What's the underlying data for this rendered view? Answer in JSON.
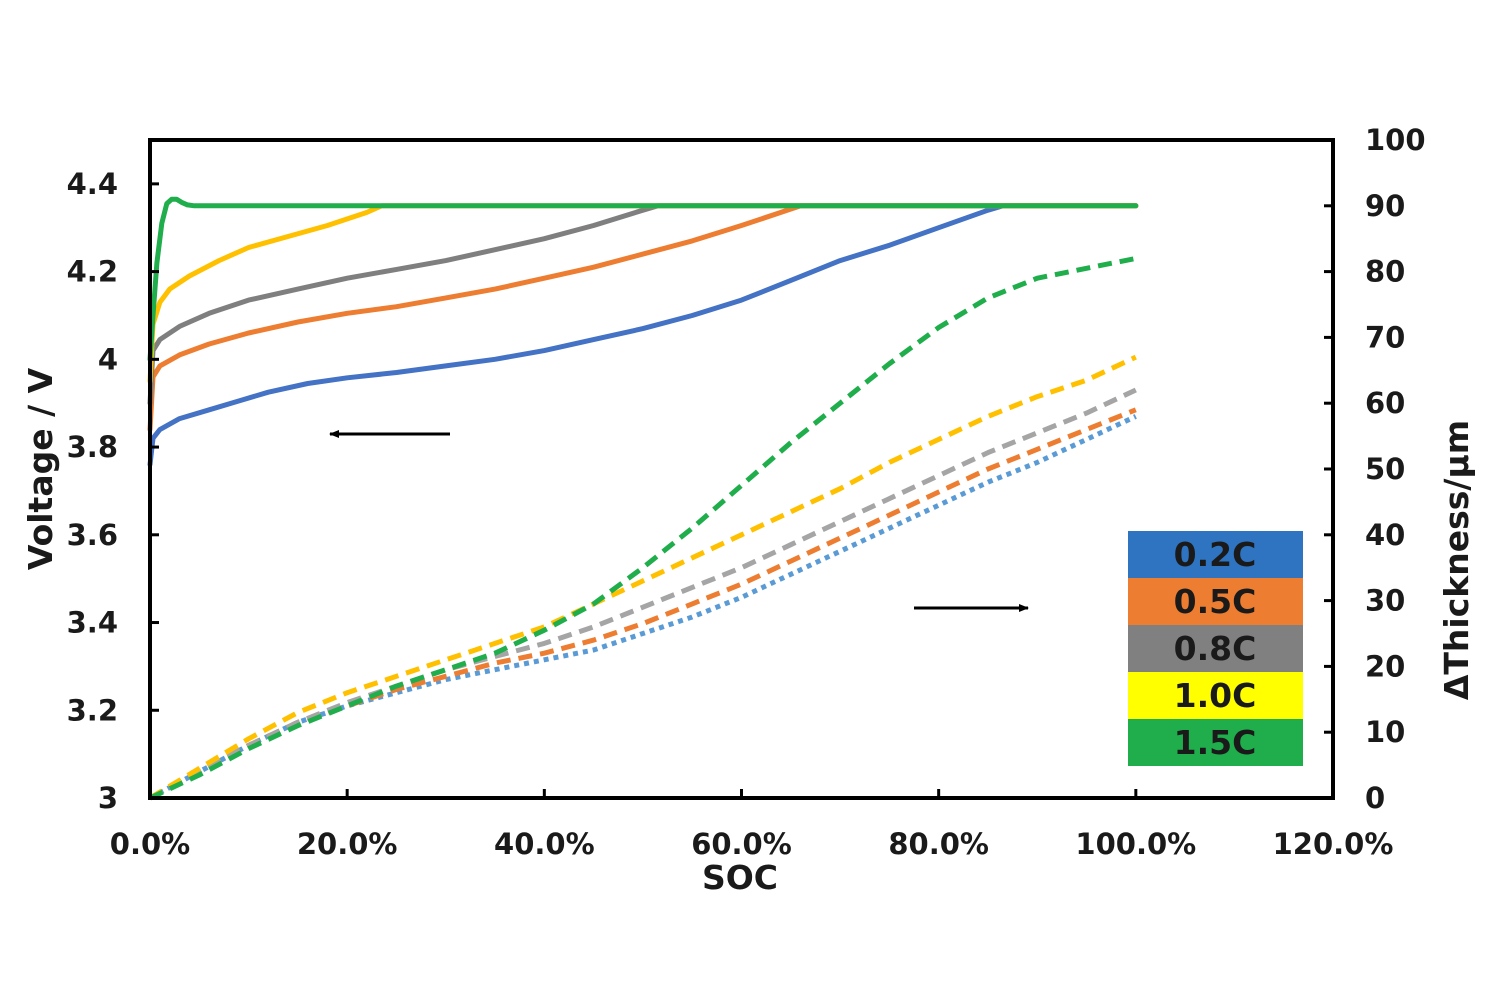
{
  "chart_data": {
    "type": "line",
    "xlabel": "SOC",
    "ylabel": "Voltage / V",
    "y2label": "ΔThickness/μm",
    "xlim": [
      0,
      120
    ],
    "ylim": [
      3,
      4.5
    ],
    "y2lim": [
      0,
      100
    ],
    "x_ticks": [
      "0.0%",
      "20.0%",
      "40.0%",
      "60.0%",
      "80.0%",
      "100.0%",
      "120.0%"
    ],
    "y_ticks": [
      "3",
      "3.2",
      "3.4",
      "3.6",
      "3.8",
      "4",
      "4.2",
      "4.4"
    ],
    "y2_ticks": [
      "0",
      "10",
      "20",
      "30",
      "40",
      "50",
      "60",
      "70",
      "80",
      "90",
      "100"
    ],
    "legend": {
      "position": "bottom-right",
      "entries": [
        {
          "label": "0.2C",
          "color": "#2f74c0"
        },
        {
          "label": "0.5C",
          "color": "#ed7d31"
        },
        {
          "label": "0.8C",
          "color": "#808080"
        },
        {
          "label": "1.0C",
          "color": "#ffff00"
        },
        {
          "label": "1.5C",
          "color": "#1fae4b"
        }
      ]
    },
    "annotations": [
      {
        "type": "arrow",
        "direction": "left",
        "meaning": "voltage curves use left axis"
      },
      {
        "type": "arrow",
        "direction": "right",
        "meaning": "thickness curves use right axis"
      }
    ],
    "voltage_series": [
      {
        "name": "0.2C",
        "axis": "left",
        "color": "#4472c4",
        "x": [
          0,
          0.3,
          1,
          3,
          6,
          9,
          12,
          16,
          20,
          25,
          30,
          35,
          40,
          45,
          50,
          55,
          60,
          65,
          70,
          75,
          80,
          85,
          86.5,
          90,
          95,
          100
        ],
        "y": [
          3.76,
          3.82,
          3.84,
          3.865,
          3.885,
          3.905,
          3.925,
          3.945,
          3.958,
          3.97,
          3.985,
          4.0,
          4.02,
          4.045,
          4.07,
          4.1,
          4.135,
          4.18,
          4.225,
          4.26,
          4.3,
          4.34,
          4.35,
          4.35,
          4.35,
          4.35
        ]
      },
      {
        "name": "0.5C",
        "axis": "left",
        "color": "#ed7d31",
        "x": [
          0,
          0.3,
          1,
          3,
          6,
          10,
          15,
          20,
          25,
          30,
          35,
          40,
          45,
          50,
          55,
          60,
          64,
          66,
          70,
          80,
          90,
          100
        ],
        "y": [
          3.84,
          3.96,
          3.985,
          4.01,
          4.035,
          4.06,
          4.085,
          4.105,
          4.12,
          4.14,
          4.16,
          4.185,
          4.21,
          4.24,
          4.27,
          4.305,
          4.335,
          4.35,
          4.35,
          4.35,
          4.35,
          4.35
        ]
      },
      {
        "name": "0.8C",
        "axis": "left",
        "color": "#7f7f7f",
        "x": [
          0,
          0.3,
          1,
          3,
          6,
          10,
          15,
          20,
          25,
          30,
          35,
          40,
          45,
          50,
          51.5,
          55,
          60,
          70,
          80,
          90,
          100
        ],
        "y": [
          3.9,
          4.02,
          4.045,
          4.075,
          4.105,
          4.135,
          4.16,
          4.185,
          4.205,
          4.225,
          4.25,
          4.275,
          4.305,
          4.34,
          4.35,
          4.35,
          4.35,
          4.35,
          4.35,
          4.35,
          4.35
        ]
      },
      {
        "name": "1.0C",
        "axis": "left",
        "color": "#ffc000",
        "x": [
          0,
          0.3,
          1,
          2,
          4,
          7,
          10,
          14,
          18,
          22,
          23.5,
          26,
          30,
          40,
          50,
          60,
          70,
          80,
          90,
          100
        ],
        "y": [
          3.95,
          4.08,
          4.13,
          4.16,
          4.19,
          4.225,
          4.255,
          4.28,
          4.305,
          4.335,
          4.35,
          4.35,
          4.35,
          4.35,
          4.35,
          4.35,
          4.35,
          4.35,
          4.35,
          4.35
        ]
      },
      {
        "name": "1.5C",
        "axis": "left",
        "color": "#1fae4b",
        "x": [
          0,
          0.3,
          0.7,
          1.2,
          1.7,
          2.2,
          2.7,
          3.2,
          3.8,
          4.5,
          6,
          10,
          20,
          30,
          40,
          50,
          60,
          70,
          80,
          90,
          100
        ],
        "y": [
          4.0,
          4.1,
          4.22,
          4.31,
          4.355,
          4.365,
          4.365,
          4.358,
          4.352,
          4.35,
          4.35,
          4.35,
          4.35,
          4.35,
          4.35,
          4.35,
          4.35,
          4.35,
          4.35,
          4.35,
          4.35
        ]
      }
    ],
    "thickness_series": [
      {
        "name": "0.2C",
        "axis": "right",
        "color": "#5b9bd5",
        "x": [
          0,
          5,
          10,
          15,
          20,
          25,
          30,
          35,
          40,
          45,
          50,
          55,
          60,
          65,
          70,
          75,
          80,
          85,
          90,
          95,
          100
        ],
        "y": [
          0,
          4,
          8,
          11.5,
          14,
          16,
          18,
          19.5,
          21,
          22.5,
          25,
          27.5,
          30.5,
          34,
          37.5,
          41,
          44.5,
          48,
          51,
          54.5,
          58
        ]
      },
      {
        "name": "0.5C",
        "axis": "right",
        "color": "#ed7d31",
        "x": [
          0,
          5,
          10,
          15,
          20,
          25,
          30,
          35,
          40,
          45,
          50,
          55,
          60,
          65,
          70,
          75,
          80,
          85,
          90,
          95,
          100
        ],
        "y": [
          0,
          4,
          8,
          11.5,
          14,
          16.5,
          18.5,
          20.5,
          22,
          24,
          26.5,
          29.5,
          32.5,
          36,
          39.5,
          43,
          46.5,
          50,
          53,
          56,
          59
        ]
      },
      {
        "name": "0.8C",
        "axis": "right",
        "color": "#a5a5a5",
        "x": [
          0,
          5,
          10,
          15,
          20,
          25,
          30,
          35,
          40,
          45,
          50,
          55,
          60,
          65,
          70,
          75,
          80,
          85,
          90,
          95,
          100
        ],
        "y": [
          0,
          4,
          8,
          11.5,
          14.5,
          17,
          19.5,
          21.5,
          23.5,
          26,
          29,
          32,
          35,
          38.5,
          42,
          45.5,
          49,
          52.5,
          55.5,
          58.5,
          62
        ]
      },
      {
        "name": "1.0C",
        "axis": "right",
        "color": "#ffc000",
        "x": [
          0,
          5,
          10,
          15,
          20,
          25,
          30,
          35,
          40,
          45,
          50,
          55,
          60,
          65,
          70,
          75,
          80,
          85,
          90,
          95,
          100
        ],
        "y": [
          0,
          4.5,
          9,
          13,
          16,
          18.5,
          21,
          23.5,
          26,
          29.5,
          33,
          36.5,
          40,
          43.5,
          47,
          51,
          54.5,
          58,
          61,
          63.5,
          67
        ]
      },
      {
        "name": "1.5C",
        "axis": "right",
        "color": "#1fae4b",
        "x": [
          0,
          5,
          10,
          15,
          20,
          25,
          30,
          35,
          40,
          45,
          50,
          55,
          60,
          65,
          70,
          75,
          80,
          85,
          90,
          95,
          100
        ],
        "y": [
          0,
          3.5,
          7.5,
          11,
          14,
          17,
          19.5,
          22,
          25.5,
          29.5,
          35,
          41,
          47.5,
          54,
          60,
          66,
          71.5,
          76,
          79,
          80.5,
          82
        ]
      }
    ]
  }
}
